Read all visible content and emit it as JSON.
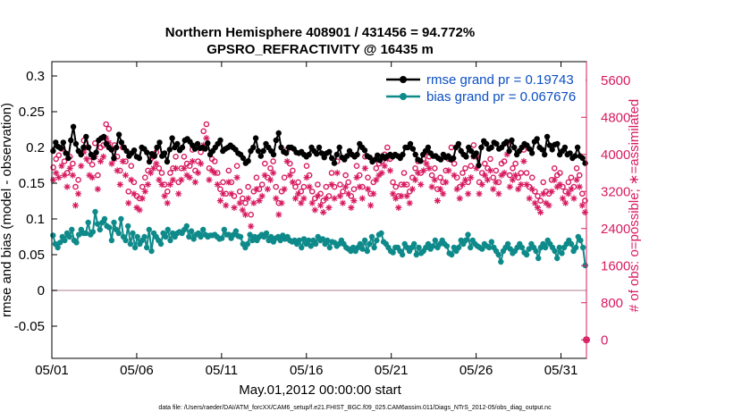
{
  "chart_data": {
    "type": "line",
    "title": "Northern Hemisphere 408901 / 431456 = 94.772%",
    "subtitle": "GPSRO_REFRACTIVITY @ 16435 m",
    "xlabel": "May.01,2012 00:00:00 start",
    "ylabel_left": "rmse and bias (model - observation)",
    "ylabel_right": "# of obs: o=possible; ∗=assimilated",
    "xlim": [
      0,
      31.5
    ],
    "ylim_left": [
      -0.095,
      0.32
    ],
    "ylim_right": [
      -400,
      6000
    ],
    "x_tick_labels": [
      "05/01",
      "05/06",
      "05/11",
      "05/16",
      "05/21",
      "05/26",
      "05/31"
    ],
    "x_tick_values": [
      0,
      5,
      10,
      15,
      20,
      25,
      30
    ],
    "y_left_ticks": [
      "0.3",
      "0.25",
      "0.2",
      "0.15",
      "0.1",
      "0.05",
      "0",
      "-0.05"
    ],
    "y_left_tick_values": [
      0.3,
      0.25,
      0.2,
      0.15,
      0.1,
      0.05,
      0,
      -0.05
    ],
    "y_right_ticks": [
      "5600",
      "4800",
      "4000",
      "3200",
      "2400",
      "1600",
      "800",
      "0"
    ],
    "y_right_tick_values": [
      5600,
      4800,
      4000,
      3200,
      2400,
      1600,
      800,
      0
    ],
    "grid": false,
    "legend_position": "top-right",
    "series": [
      {
        "name": "rmse grand pr = 0.19743",
        "color": "#000000",
        "marker": "filled-circle",
        "values": [
          0.195,
          0.207,
          0.201,
          0.199,
          0.207,
          0.192,
          0.185,
          0.21,
          0.229,
          0.205,
          0.195,
          0.19,
          0.2,
          0.215,
          0.2,
          0.19,
          0.186,
          0.193,
          0.21,
          0.213,
          0.215,
          0.205,
          0.2,
          0.197,
          0.185,
          0.2,
          0.218,
          0.207,
          0.2,
          0.195,
          0.188,
          0.192,
          0.196,
          0.187,
          0.185,
          0.2,
          0.198,
          0.193,
          0.18,
          0.191,
          0.188,
          0.2,
          0.207,
          0.188,
          0.192,
          0.18,
          0.197,
          0.213,
          0.2,
          0.205,
          0.196,
          0.2,
          0.21,
          0.212,
          0.208,
          0.203,
          0.198,
          0.205,
          0.199,
          0.2,
          0.198,
          0.206,
          0.19,
          0.195,
          0.2,
          0.205,
          0.21,
          0.195,
          0.198,
          0.2,
          0.203,
          0.2,
          0.197,
          0.192,
          0.19,
          0.185,
          0.178,
          0.181,
          0.195,
          0.2,
          0.213,
          0.195,
          0.188,
          0.195,
          0.205,
          0.2,
          0.195,
          0.19,
          0.21,
          0.22,
          0.2,
          0.194,
          0.192,
          0.2,
          0.2,
          0.198,
          0.193,
          0.192,
          0.194,
          0.19,
          0.187,
          0.19,
          0.2,
          0.195,
          0.191,
          0.2,
          0.192,
          0.186,
          0.192,
          0.194,
          0.185,
          0.178,
          0.19,
          0.2,
          0.186,
          0.183,
          0.188,
          0.195,
          0.19,
          0.187,
          0.19,
          0.205,
          0.2,
          0.196,
          0.188,
          0.186,
          0.18,
          0.183,
          0.189,
          0.182,
          0.188,
          0.185,
          0.188,
          0.19,
          0.187,
          0.19,
          0.188,
          0.185,
          0.19,
          0.2,
          0.2,
          0.205,
          0.198,
          0.19,
          0.183,
          0.181,
          0.19,
          0.195,
          0.2,
          0.192,
          0.188,
          0.188,
          0.185,
          0.183,
          0.19,
          0.186,
          0.188,
          0.183,
          0.185,
          0.2,
          0.205,
          0.195,
          0.19,
          0.187,
          0.2,
          0.195,
          0.188,
          0.192,
          0.175,
          0.2,
          0.209,
          0.205,
          0.198,
          0.2,
          0.207,
          0.205,
          0.198,
          0.2,
          0.205,
          0.208,
          0.195,
          0.21,
          0.2,
          0.19,
          0.195,
          0.2,
          0.205,
          0.203,
          0.198,
          0.192,
          0.208,
          0.212,
          0.2,
          0.197,
          0.19,
          0.215,
          0.203,
          0.197,
          0.204,
          0.205,
          0.19,
          0.195,
          0.2,
          0.19,
          0.192,
          0.185,
          0.188,
          0.2,
          0.188,
          0.185,
          0.178
        ]
      },
      {
        "name": "bias grand pr = 0.067676",
        "color": "#0f8a8a",
        "marker": "filled-circle",
        "values": [
          0.077,
          0.065,
          0.06,
          0.067,
          0.075,
          0.07,
          0.08,
          0.075,
          0.085,
          0.07,
          0.067,
          0.078,
          0.085,
          0.08,
          0.08,
          0.095,
          0.078,
          0.082,
          0.11,
          0.093,
          0.085,
          0.095,
          0.1,
          0.09,
          0.088,
          0.07,
          0.095,
          0.085,
          0.08,
          0.1,
          0.075,
          0.07,
          0.09,
          0.065,
          0.08,
          0.06,
          0.075,
          0.065,
          0.07,
          0.075,
          0.06,
          0.085,
          0.055,
          0.08,
          0.075,
          0.07,
          0.065,
          0.08,
          0.075,
          0.085,
          0.07,
          0.08,
          0.075,
          0.08,
          0.082,
          0.08,
          0.085,
          0.09,
          0.075,
          0.083,
          0.072,
          0.078,
          0.08,
          0.075,
          0.085,
          0.078,
          0.075,
          0.077,
          0.077,
          0.078,
          0.075,
          0.072,
          0.073,
          0.085,
          0.078,
          0.078,
          0.073,
          0.078,
          0.083,
          0.076,
          0.075,
          0.065,
          0.06,
          0.065,
          0.078,
          0.07,
          0.075,
          0.07,
          0.075,
          0.078,
          0.075,
          0.08,
          0.07,
          0.075,
          0.068,
          0.073,
          0.075,
          0.07,
          0.077,
          0.072,
          0.075,
          0.07,
          0.068,
          0.07,
          0.065,
          0.07,
          0.06,
          0.072,
          0.065,
          0.07,
          0.062,
          0.07,
          0.065,
          0.075,
          0.07,
          0.072,
          0.065,
          0.07,
          0.06,
          0.068,
          0.067,
          0.062,
          0.065,
          0.07,
          0.065,
          0.06,
          0.058,
          0.055,
          0.06,
          0.055,
          0.06,
          0.065,
          0.058,
          0.07,
          0.055,
          0.065,
          0.075,
          0.06,
          0.07,
          0.078,
          0.08,
          0.068,
          0.065,
          0.06,
          0.055,
          0.053,
          0.06,
          0.06,
          0.055,
          0.05,
          0.065,
          0.06,
          0.055,
          0.06,
          0.065,
          0.05,
          0.06,
          0.052,
          0.055,
          0.06,
          0.065,
          0.058,
          0.062,
          0.07,
          0.06,
          0.065,
          0.07,
          0.065,
          0.062,
          0.052,
          0.05,
          0.06,
          0.055,
          0.06,
          0.07,
          0.065,
          0.07,
          0.078,
          0.06,
          0.07,
          0.065,
          0.062,
          0.06,
          0.058,
          0.065,
          0.062,
          0.06,
          0.068,
          0.06,
          0.055,
          0.05,
          0.04,
          0.055,
          0.06,
          0.065,
          0.058,
          0.052,
          0.055,
          0.06,
          0.065,
          0.06,
          0.053,
          0.05,
          0.058,
          0.065,
          0.06,
          0.055,
          0.045,
          0.06,
          0.065,
          0.06,
          0.07,
          0.065,
          0.06,
          0.055,
          0.045,
          0.06,
          0.052,
          0.06,
          0.065,
          0.07,
          0.065,
          0.055,
          0.06,
          0.075,
          0.07,
          0.06,
          0.035
        ]
      },
      {
        "name": "",
        "color": "#d81b60",
        "marker": "open-circle",
        "axis": "right",
        "values": [
          3720,
          3900,
          3980,
          4120,
          3850,
          3600,
          3950,
          3800,
          3300,
          3450,
          4020,
          4300,
          4150,
          3860,
          3780,
          4240,
          3550,
          4150,
          4200,
          4650,
          4550,
          4100,
          4200,
          3950,
          3650,
          4150,
          3850,
          3200,
          3750,
          3400,
          3100,
          3050,
          3300,
          3500,
          3650,
          3900,
          3950,
          4050,
          3700,
          3600,
          3350,
          3200,
          3600,
          3700,
          3950,
          3400,
          3700,
          3950,
          3800,
          3750,
          4100,
          3650,
          3850,
          4050,
          4500,
          4650,
          3700,
          3900,
          3850,
          3600,
          3250,
          3400,
          3150,
          3650,
          3400,
          3100,
          3750,
          3200,
          3050,
          2950,
          3300,
          2700,
          3200,
          3500,
          3250,
          3350,
          3800,
          3500,
          3700,
          3850,
          3300,
          2950,
          3200,
          3500,
          4100,
          3800,
          3650,
          3300,
          3400,
          3200,
          3300,
          3750,
          3550,
          3200,
          3050,
          3350,
          3150,
          3000,
          3300,
          3100,
          3600,
          3300,
          3850,
          3350,
          3200,
          3550,
          3400,
          3100,
          3250,
          3750,
          3550,
          3300,
          3950,
          3500,
          3150,
          3400,
          3700,
          3800,
          3850,
          4000,
          4150,
          3900,
          3400,
          3300,
          3100,
          3350,
          3600,
          3350,
          3200,
          3500,
          3700,
          3850,
          3600,
          3900,
          4050,
          3950,
          3550,
          3700,
          3250,
          3500,
          3400,
          3650,
          3900,
          4150,
          3800,
          3500,
          3300,
          3600,
          3700,
          3400,
          3750,
          4200,
          3950,
          3400,
          3600,
          3800,
          3700,
          3900,
          3500,
          3650,
          3400,
          3800,
          3850,
          4250,
          3550,
          3700,
          3800,
          3500,
          3600,
          4100,
          3600,
          3300,
          3500,
          3200,
          3100,
          3000,
          3400,
          3200,
          3150,
          3450,
          3700,
          3550,
          3600,
          3300,
          3200,
          3400,
          3500,
          3300,
          3700,
          3550,
          3150,
          3000
        ]
      },
      {
        "name": "",
        "color": "#d81b60",
        "marker": "asterisk",
        "axis": "right",
        "values": [
          3450,
          3600,
          3500,
          3750,
          3550,
          3300,
          3700,
          3550,
          2900,
          3150,
          3750,
          4050,
          3900,
          3550,
          3500,
          3950,
          3250,
          3850,
          3950,
          4350,
          4250,
          3800,
          3900,
          3650,
          3350,
          3850,
          3550,
          2950,
          3450,
          3150,
          2850,
          2800,
          3050,
          3200,
          3350,
          3600,
          3700,
          3800,
          3450,
          3350,
          3100,
          2950,
          3350,
          3450,
          3700,
          3150,
          3450,
          3700,
          3550,
          3500,
          3850,
          3400,
          3600,
          3800,
          4200,
          4350,
          3450,
          3650,
          3600,
          3350,
          3000,
          3150,
          2900,
          3400,
          3150,
          2850,
          3500,
          2950,
          2800,
          2700,
          3050,
          2450,
          2950,
          3250,
          3000,
          3100,
          3550,
          3250,
          3450,
          3600,
          3050,
          2700,
          2950,
          3250,
          3850,
          3550,
          3400,
          3050,
          3150,
          2950,
          3050,
          3500,
          3300,
          2950,
          2800,
          3100,
          2900,
          2750,
          3050,
          2850,
          3350,
          3050,
          3600,
          3100,
          2950,
          3300,
          3150,
          2850,
          3000,
          3500,
          3300,
          3050,
          3700,
          3250,
          2900,
          3150,
          3450,
          3550,
          3600,
          3750,
          3900,
          3650,
          3150,
          3050,
          2850,
          3100,
          3350,
          3100,
          2950,
          3250,
          3450,
          3600,
          3350,
          3650,
          3800,
          3700,
          3300,
          3450,
          3000,
          3250,
          3150,
          3400,
          3650,
          3900,
          3550,
          3250,
          3050,
          3350,
          3450,
          3150,
          3500,
          3950,
          3700,
          3150,
          3350,
          3550,
          3450,
          3650,
          3250,
          3400,
          3150,
          3550,
          3600,
          4000,
          3300,
          3450,
          3550,
          3250,
          3350,
          3850,
          3350,
          3050,
          3250,
          2950,
          2850,
          2750,
          3150,
          2950,
          2900,
          3200,
          3450,
          3300,
          3350,
          3050,
          2950,
          3150,
          3250,
          3050,
          3450,
          3300,
          2900,
          2750
        ]
      }
    ],
    "right_axis_end_marker_value": 0
  },
  "footnote": "data file: /Users/raeder/DAI/ATM_forcXX/CAM6_setup/f.e21.FHIST_BGC.f09_025.CAM6assim.011/Diags_NTrS_2012-05/obs_diag_output.nc",
  "colors": {
    "rmse": "#000000",
    "bias": "#0f8a8a",
    "obs": "#d81b60",
    "zero_line": "#c9a8b4",
    "legend_text": "#0b4fc4"
  }
}
